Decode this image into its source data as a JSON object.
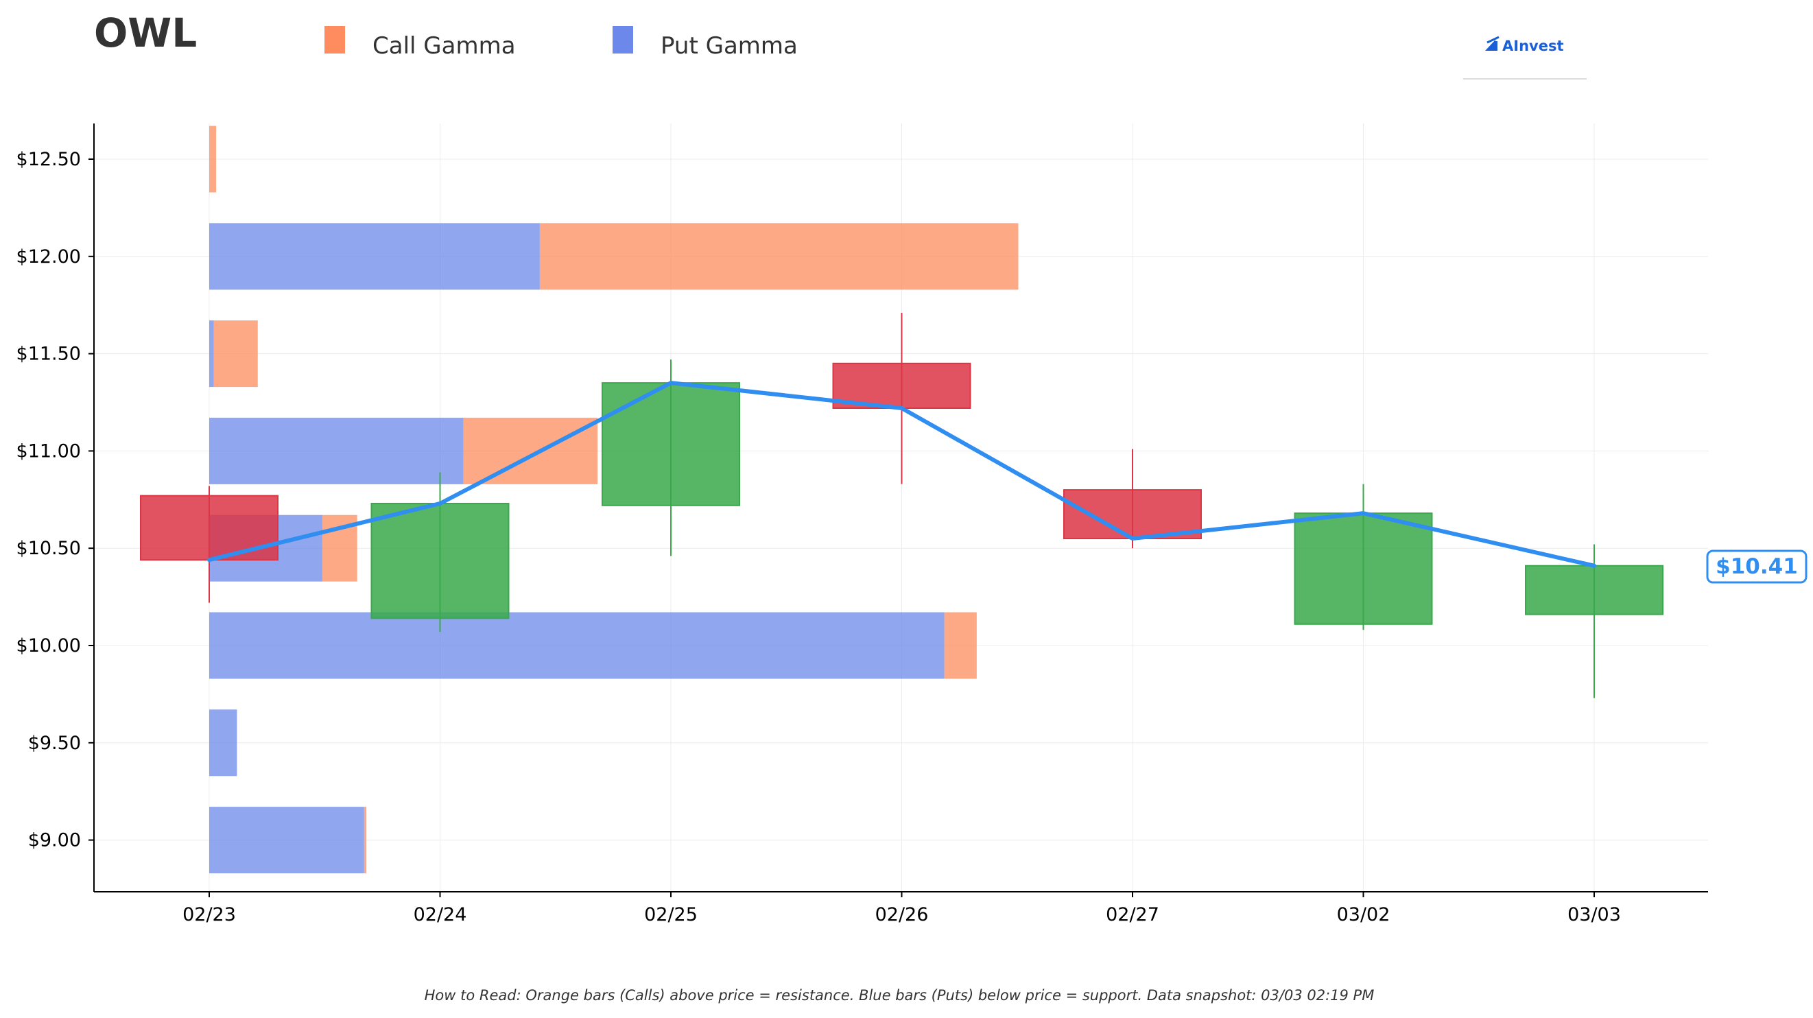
{
  "title": "OWL",
  "legend": [
    {
      "label": "Call Gamma",
      "color": "#fe8c5e"
    },
    {
      "label": "Put Gamma",
      "color": "#6b88ea"
    }
  ],
  "logo": {
    "text": "AInvest",
    "icon": "aivest-logo-icon"
  },
  "note": "How to Read: Orange bars (Calls) above price = resistance. Blue bars (Puts) below price = support. Data snapshot: 03/03 02:19 PM",
  "price_label": "$10.41",
  "colors": {
    "up": "#3aa94b",
    "down": "#dc3545",
    "line": "#2f8ef0",
    "call": "#fe8c5e",
    "put": "#6b88ea"
  },
  "chart_data": {
    "type": "candlestick",
    "title": "OWL",
    "x_categories": [
      "02/23",
      "02/24",
      "02/25",
      "02/26",
      "02/27",
      "03/02",
      "03/03"
    ],
    "y_ticks": [
      9.0,
      9.5,
      10.0,
      10.5,
      11.0,
      11.5,
      12.0,
      12.5
    ],
    "y_tick_labels": [
      "$9.00",
      "$9.50",
      "$10.00",
      "$10.50",
      "$11.00",
      "$11.50",
      "$12.00",
      "$12.50"
    ],
    "ylim": [
      8.75,
      12.69
    ],
    "candles": [
      {
        "date": "02/23",
        "open": 10.77,
        "high": 10.82,
        "low": 10.22,
        "close": 10.44
      },
      {
        "date": "02/24",
        "open": 10.14,
        "high": 10.89,
        "low": 10.07,
        "close": 10.73
      },
      {
        "date": "02/25",
        "open": 10.72,
        "high": 11.47,
        "low": 10.46,
        "close": 11.35
      },
      {
        "date": "02/26",
        "open": 11.45,
        "high": 11.71,
        "low": 10.83,
        "close": 11.22
      },
      {
        "date": "02/27",
        "open": 10.8,
        "high": 11.01,
        "low": 10.5,
        "close": 10.55
      },
      {
        "date": "03/02",
        "open": 10.11,
        "high": 10.83,
        "low": 10.08,
        "close": 10.68
      },
      {
        "date": "03/03",
        "open": 10.16,
        "high": 10.52,
        "low": 9.73,
        "close": 10.41
      }
    ],
    "price_line": [
      10.44,
      10.73,
      11.35,
      11.22,
      10.55,
      10.68,
      10.41
    ],
    "gamma_bars": [
      {
        "strike": 12.5,
        "put": 0.0,
        "call": 0.03
      },
      {
        "strike": 12.0,
        "put": 1.43,
        "call": 2.07
      },
      {
        "strike": 11.5,
        "put": 0.02,
        "call": 0.19
      },
      {
        "strike": 11.0,
        "put": 1.1,
        "call": 0.58
      },
      {
        "strike": 10.5,
        "put": 0.49,
        "call": 0.15
      },
      {
        "strike": 10.0,
        "put": 3.18,
        "call": 0.14
      },
      {
        "strike": 9.5,
        "put": 0.12,
        "call": 0.0
      },
      {
        "strike": 9.0,
        "put": 0.67,
        "call": 0.01
      }
    ]
  }
}
